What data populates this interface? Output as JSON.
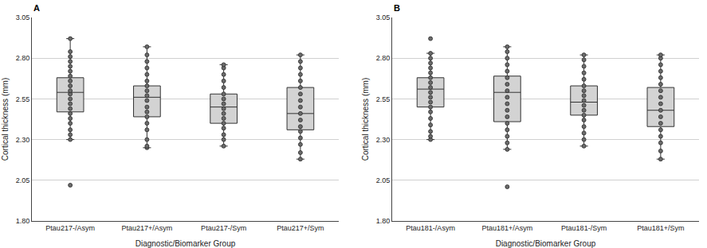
{
  "chart_data": [
    {
      "type": "box",
      "title": "A",
      "x_label": "Diagnostic/Biomarker Group",
      "y_label": "Cortical thickness (mm)",
      "categories": [
        "Ptau217-/Asym",
        "Ptau217+/Asym",
        "Ptau217-/Sym",
        "Ptau217+/Sym"
      ],
      "q1": [
        2.47,
        2.44,
        2.4,
        2.36
      ],
      "median": [
        2.59,
        2.56,
        2.5,
        2.46
      ],
      "q3": [
        2.68,
        2.63,
        2.58,
        2.62
      ],
      "lowerfence": [
        2.3,
        2.25,
        2.26,
        2.18
      ],
      "upperfence": [
        2.92,
        2.87,
        2.76,
        2.82
      ],
      "points": [
        [
          2.02,
          2.3,
          2.33,
          2.36,
          2.4,
          2.43,
          2.46,
          2.49,
          2.52,
          2.55,
          2.58,
          2.6,
          2.63,
          2.66,
          2.69,
          2.72,
          2.75,
          2.78,
          2.81,
          2.84,
          2.92
        ],
        [
          2.25,
          2.26,
          2.3,
          2.36,
          2.4,
          2.44,
          2.47,
          2.5,
          2.54,
          2.57,
          2.6,
          2.63,
          2.66,
          2.7,
          2.74,
          2.78,
          2.82,
          2.87
        ],
        [
          2.26,
          2.3,
          2.33,
          2.37,
          2.4,
          2.43,
          2.46,
          2.49,
          2.52,
          2.55,
          2.58,
          2.62,
          2.66,
          2.7,
          2.74,
          2.76
        ],
        [
          2.18,
          2.22,
          2.27,
          2.31,
          2.35,
          2.38,
          2.42,
          2.46,
          2.5,
          2.54,
          2.58,
          2.62,
          2.66,
          2.7,
          2.74,
          2.78,
          2.82
        ]
      ],
      "ylim": [
        1.8,
        3.05
      ],
      "yticks": [
        {
          "value": 1.8,
          "label": "1.80"
        },
        {
          "value": 2.05,
          "label": "2.05"
        },
        {
          "value": 2.3,
          "label": "2.30"
        },
        {
          "value": 2.55,
          "label": "2.55"
        },
        {
          "value": 2.8,
          "label": "2.80"
        },
        {
          "value": 3.05,
          "label": "3.05"
        }
      ],
      "grid": true,
      "color": "#d3d3d3"
    },
    {
      "type": "box",
      "title": "B",
      "x_label": "Diagnostic/Biomarker Group",
      "y_label": "Cortical thickness (mm)",
      "categories": [
        "Ptau181-/Asym",
        "Ptau181+/Asym",
        "Ptau181-/Sym",
        "Ptau181+/Sym"
      ],
      "q1": [
        2.5,
        2.41,
        2.45,
        2.38
      ],
      "median": [
        2.61,
        2.59,
        2.53,
        2.48
      ],
      "q3": [
        2.68,
        2.69,
        2.63,
        2.62
      ],
      "lowerfence": [
        2.3,
        2.24,
        2.26,
        2.18
      ],
      "upperfence": [
        2.83,
        2.87,
        2.82,
        2.82
      ],
      "points": [
        [
          2.3,
          2.32,
          2.35,
          2.39,
          2.43,
          2.47,
          2.5,
          2.53,
          2.56,
          2.59,
          2.62,
          2.65,
          2.68,
          2.71,
          2.74,
          2.77,
          2.8,
          2.83,
          2.92
        ],
        [
          2.01,
          2.24,
          2.28,
          2.32,
          2.36,
          2.4,
          2.44,
          2.48,
          2.52,
          2.56,
          2.6,
          2.64,
          2.68,
          2.72,
          2.76,
          2.8,
          2.84,
          2.87
        ],
        [
          2.26,
          2.3,
          2.34,
          2.38,
          2.42,
          2.45,
          2.48,
          2.51,
          2.54,
          2.57,
          2.6,
          2.63,
          2.67,
          2.71,
          2.75,
          2.79,
          2.82
        ],
        [
          2.18,
          2.23,
          2.28,
          2.32,
          2.36,
          2.4,
          2.44,
          2.48,
          2.52,
          2.56,
          2.6,
          2.64,
          2.68,
          2.72,
          2.76,
          2.8,
          2.82
        ]
      ],
      "ylim": [
        1.8,
        3.05
      ],
      "yticks": [
        {
          "value": 1.8,
          "label": "1.80"
        },
        {
          "value": 2.05,
          "label": "2.05"
        },
        {
          "value": 2.3,
          "label": "2.30"
        },
        {
          "value": 2.55,
          "label": "2.55"
        },
        {
          "value": 2.8,
          "label": "2.80"
        },
        {
          "value": 3.05,
          "label": "3.05"
        }
      ],
      "grid": true,
      "color": "#d3d3d3"
    }
  ]
}
